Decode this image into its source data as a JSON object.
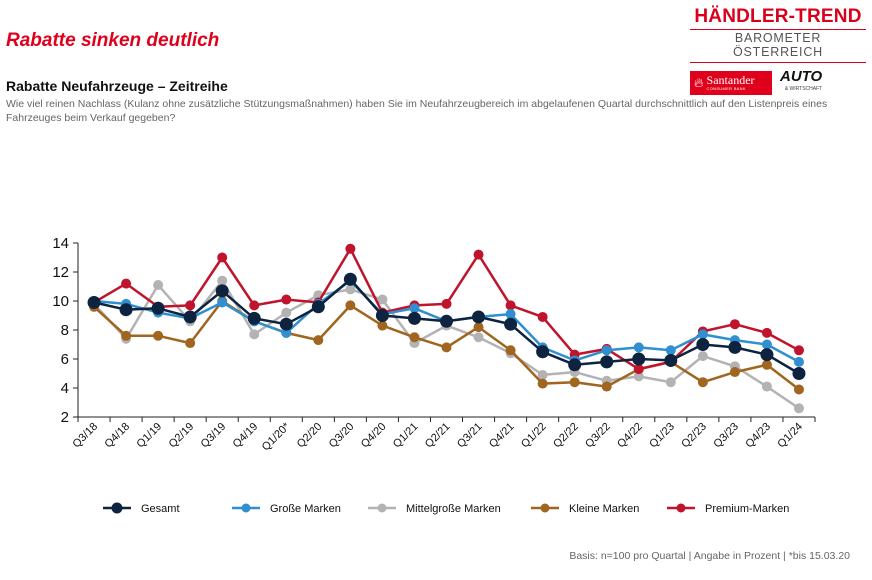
{
  "header": {
    "headline": "Rabatte sinken deutlich",
    "subtitle": "Rabatte Neufahrzeuge – Zeitreihe",
    "question": "Wie viel reinen Nachlass (Kulanz ohne zusätzliche Stützungsmaßnahmen) haben Sie im Neufahrzeugbereich im abgelaufenen Quartal durchschnittlich auf den Listenpreis eines Fahrzeuges beim Verkauf gegeben?"
  },
  "logo": {
    "title": "HÄNDLER-TREND",
    "subtitle": "BAROMETER ÖSTERREICH",
    "santander_name": "Santander",
    "santander_sub": "CONSUMER BANK",
    "auto_name": "AUTO",
    "auto_sub": "& WIRTSCHAFT",
    "brand_color": "#d9001b"
  },
  "footer": {
    "basis": "Basis: n=100 pro Quartal | Angabe in Prozent | *bis 15.03.20"
  },
  "chart_data": {
    "type": "line",
    "x": [
      "Q3/18",
      "Q4/18",
      "Q1/19",
      "Q2/19",
      "Q3/19",
      "Q4/19",
      "Q1/20*",
      "Q2/20",
      "Q3/20",
      "Q4/20",
      "Q1/21",
      "Q2/21",
      "Q3/21",
      "Q4/21",
      "Q1/22",
      "Q2/22",
      "Q3/22",
      "Q4/22",
      "Q1/23",
      "Q2/23",
      "Q3/23",
      "Q4/23",
      "Q1/24"
    ],
    "ylim": [
      2,
      14
    ],
    "yticks": [
      2,
      4,
      6,
      8,
      10,
      12,
      14
    ],
    "grid": false,
    "legend_position": "bottom",
    "series": [
      {
        "name": "Gesamt",
        "color": "#0d2340",
        "values": [
          9.9,
          9.4,
          9.5,
          8.9,
          10.7,
          8.8,
          8.4,
          9.6,
          11.5,
          9.0,
          8.8,
          8.6,
          8.9,
          8.4,
          6.5,
          5.6,
          5.8,
          6.0,
          5.9,
          7.0,
          6.8,
          6.3,
          5.0
        ]
      },
      {
        "name": "Große Marken",
        "color": "#2f8fd0",
        "values": [
          10.0,
          9.8,
          9.2,
          8.8,
          9.9,
          8.6,
          7.8,
          9.8,
          11.4,
          9.1,
          9.5,
          8.6,
          8.9,
          9.1,
          6.8,
          5.9,
          6.6,
          6.8,
          6.6,
          7.7,
          7.3,
          7.0,
          5.8
        ]
      },
      {
        "name": "Mittelgroße Marken",
        "color": "#b3b3b3",
        "values": [
          9.8,
          7.4,
          11.1,
          8.6,
          11.4,
          7.7,
          9.2,
          10.4,
          10.8,
          10.1,
          7.1,
          8.3,
          7.5,
          6.4,
          4.9,
          5.1,
          4.5,
          4.8,
          4.4,
          6.2,
          5.5,
          4.1,
          2.6
        ]
      },
      {
        "name": "Kleine Marken",
        "color": "#a0651e",
        "values": [
          9.6,
          7.6,
          7.6,
          7.1,
          10.0,
          8.6,
          7.8,
          7.3,
          9.7,
          8.3,
          7.5,
          6.8,
          8.2,
          6.6,
          4.3,
          4.4,
          4.1,
          5.3,
          5.8,
          4.4,
          5.1,
          5.6,
          3.9
        ]
      },
      {
        "name": "Premium-Marken",
        "color": "#c0142d",
        "values": [
          9.9,
          11.2,
          9.6,
          9.7,
          13.0,
          9.7,
          10.1,
          9.9,
          13.6,
          9.2,
          9.7,
          9.8,
          13.2,
          9.7,
          8.9,
          6.3,
          6.7,
          5.3,
          5.8,
          7.9,
          8.4,
          7.8,
          6.6
        ]
      }
    ]
  }
}
